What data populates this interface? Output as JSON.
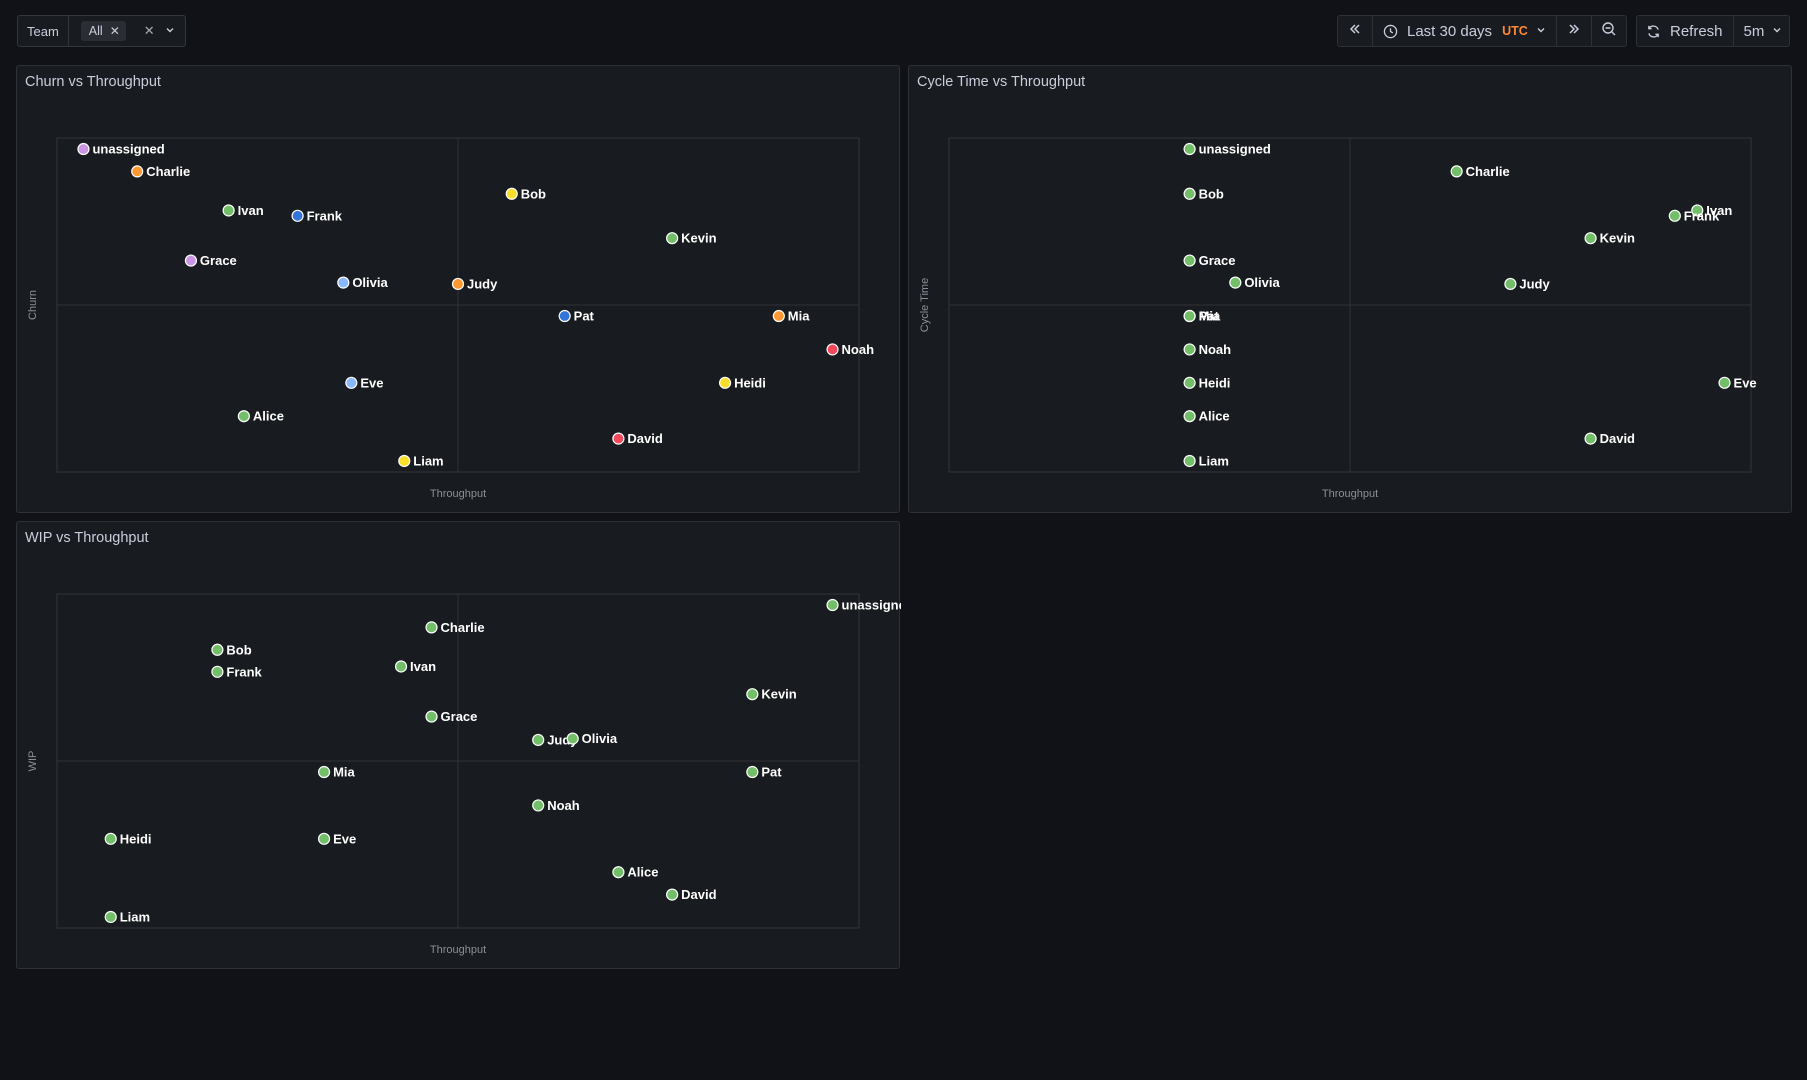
{
  "filter": {
    "label": "Team",
    "chip": "All",
    "chip_remove_icon": "close-icon",
    "clear_icon": "close-icon",
    "expand_icon": "chevron-down-icon"
  },
  "timepicker": {
    "back_icon": "chevrons-left-icon",
    "clock_icon": "clock-icon",
    "range": "Last 30 days",
    "timezone": "UTC",
    "forward_icon": "chevrons-right-icon",
    "zoom_icon": "zoom-out-icon"
  },
  "refresh": {
    "icon": "sync-icon",
    "label": "Refresh",
    "interval": "5m"
  },
  "colors": {
    "background": "#111217",
    "panel": "#181b1f",
    "green": "#73bf69",
    "orange": "#ff9830",
    "yellow": "#fade2a",
    "blue": "#3274d9",
    "lightblue": "#8ab8ff",
    "purple": "#ca95e5",
    "red": "#f2495c",
    "utc": "#ff8833"
  },
  "panels": [
    {
      "title": "Churn vs Throughput",
      "chart_data": {
        "type": "scatter",
        "xlabel": "Throughput",
        "ylabel": "Churn",
        "xlim": [
          0,
          100
        ],
        "ylim": [
          0,
          100
        ],
        "points": [
          {
            "name": "unassigned",
            "x": 3.3,
            "y": 96.7,
            "color": "purple"
          },
          {
            "name": "Charlie",
            "x": 10,
            "y": 90,
            "color": "orange"
          },
          {
            "name": "Ivan",
            "x": 21.4,
            "y": 78.3,
            "color": "green"
          },
          {
            "name": "Frank",
            "x": 30,
            "y": 76.7,
            "color": "blue"
          },
          {
            "name": "Bob",
            "x": 56.7,
            "y": 83.3,
            "color": "yellow"
          },
          {
            "name": "Kevin",
            "x": 76.7,
            "y": 70,
            "color": "green"
          },
          {
            "name": "Grace",
            "x": 16.7,
            "y": 63.3,
            "color": "purple"
          },
          {
            "name": "Olivia",
            "x": 35.7,
            "y": 56.7,
            "color": "lightblue"
          },
          {
            "name": "Judy",
            "x": 50,
            "y": 56.3,
            "color": "orange"
          },
          {
            "name": "Pat",
            "x": 63.3,
            "y": 46.7,
            "color": "blue"
          },
          {
            "name": "Mia",
            "x": 90,
            "y": 46.7,
            "color": "orange"
          },
          {
            "name": "Noah",
            "x": 96.7,
            "y": 36.7,
            "color": "red"
          },
          {
            "name": "Eve",
            "x": 36.7,
            "y": 26.7,
            "color": "lightblue"
          },
          {
            "name": "Heidi",
            "x": 83.3,
            "y": 26.7,
            "color": "yellow"
          },
          {
            "name": "Alice",
            "x": 23.3,
            "y": 16.7,
            "color": "green"
          },
          {
            "name": "David",
            "x": 70,
            "y": 10,
            "color": "red"
          },
          {
            "name": "Liam",
            "x": 43.3,
            "y": 3.3,
            "color": "yellow"
          }
        ]
      }
    },
    {
      "title": "Cycle Time vs Throughput",
      "chart_data": {
        "type": "scatter",
        "xlabel": "Throughput",
        "ylabel": "Cycle Time",
        "xlim": [
          0,
          100
        ],
        "ylim": [
          0,
          100
        ],
        "points": [
          {
            "name": "unassigned",
            "x": 30,
            "y": 96.7,
            "color": "green"
          },
          {
            "name": "Charlie",
            "x": 63.3,
            "y": 90,
            "color": "green"
          },
          {
            "name": "Bob",
            "x": 30,
            "y": 83.3,
            "color": "green"
          },
          {
            "name": "Ivan",
            "x": 93.3,
            "y": 78.3,
            "color": "green"
          },
          {
            "name": "Frank",
            "x": 90.5,
            "y": 76.7,
            "color": "green"
          },
          {
            "name": "Kevin",
            "x": 80,
            "y": 70,
            "color": "green"
          },
          {
            "name": "Grace",
            "x": 30,
            "y": 63.3,
            "color": "green"
          },
          {
            "name": "Olivia",
            "x": 35.7,
            "y": 56.7,
            "color": "green"
          },
          {
            "name": "Judy",
            "x": 70,
            "y": 56.3,
            "color": "green"
          },
          {
            "name": "Pat",
            "x": 30,
            "y": 46.7,
            "color": "green"
          },
          {
            "name": "Mia",
            "x": 30,
            "y": 46.7,
            "color": "green"
          },
          {
            "name": "Noah",
            "x": 30,
            "y": 36.7,
            "color": "green"
          },
          {
            "name": "Heidi",
            "x": 30,
            "y": 26.7,
            "color": "green"
          },
          {
            "name": "Eve",
            "x": 96.7,
            "y": 26.7,
            "color": "green"
          },
          {
            "name": "Alice",
            "x": 30,
            "y": 16.7,
            "color": "green"
          },
          {
            "name": "David",
            "x": 80,
            "y": 10,
            "color": "green"
          },
          {
            "name": "Liam",
            "x": 30,
            "y": 3.3,
            "color": "green"
          }
        ]
      }
    },
    {
      "title": "WIP vs Throughput",
      "chart_data": {
        "type": "scatter",
        "xlabel": "Throughput",
        "ylabel": "WIP",
        "xlim": [
          0,
          100
        ],
        "ylim": [
          0,
          100
        ],
        "points": [
          {
            "name": "unassigned",
            "x": 96.7,
            "y": 96.7,
            "color": "green"
          },
          {
            "name": "Charlie",
            "x": 46.7,
            "y": 90,
            "color": "green"
          },
          {
            "name": "Bob",
            "x": 20,
            "y": 83.3,
            "color": "green"
          },
          {
            "name": "Frank",
            "x": 20,
            "y": 76.7,
            "color": "green"
          },
          {
            "name": "Ivan",
            "x": 42.9,
            "y": 78.3,
            "color": "green"
          },
          {
            "name": "Kevin",
            "x": 86.7,
            "y": 70,
            "color": "green"
          },
          {
            "name": "Grace",
            "x": 46.7,
            "y": 63.3,
            "color": "green"
          },
          {
            "name": "Judy",
            "x": 60,
            "y": 56.3,
            "color": "green"
          },
          {
            "name": "Olivia",
            "x": 64.3,
            "y": 56.7,
            "color": "green"
          },
          {
            "name": "Mia",
            "x": 33.3,
            "y": 46.7,
            "color": "green"
          },
          {
            "name": "Pat",
            "x": 86.7,
            "y": 46.7,
            "color": "green"
          },
          {
            "name": "Noah",
            "x": 60,
            "y": 36.7,
            "color": "green"
          },
          {
            "name": "Heidi",
            "x": 6.7,
            "y": 26.7,
            "color": "green"
          },
          {
            "name": "Eve",
            "x": 33.3,
            "y": 26.7,
            "color": "green"
          },
          {
            "name": "Alice",
            "x": 70,
            "y": 16.7,
            "color": "green"
          },
          {
            "name": "David",
            "x": 76.7,
            "y": 10,
            "color": "green"
          },
          {
            "name": "Liam",
            "x": 6.7,
            "y": 3.3,
            "color": "green"
          }
        ]
      }
    }
  ]
}
